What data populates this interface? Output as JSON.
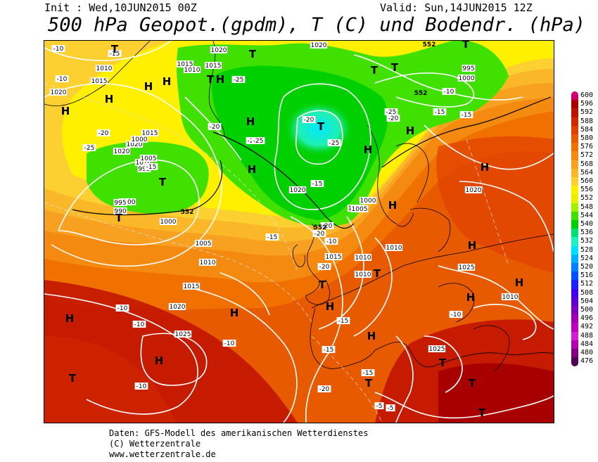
{
  "header": {
    "init": "Init : Wed,10JUN2015 00Z",
    "valid": "Valid: Sun,14JUN2015 12Z",
    "title": "500 hPa Geopot.(gpdm), T (C) und Bodendr. (hPa)"
  },
  "credits": {
    "line1": "Daten: GFS-Modell des amerikanischen Wetterdienstes",
    "line2": "(C) Wetterzentrale",
    "line3": "www.wetterzentrale.de"
  },
  "scale": {
    "labels": [
      "600",
      "596",
      "592",
      "588",
      "584",
      "580",
      "576",
      "572",
      "568",
      "564",
      "560",
      "556",
      "552",
      "548",
      "544",
      "540",
      "536",
      "532",
      "528",
      "524",
      "520",
      "516",
      "512",
      "508",
      "504",
      "500",
      "496",
      "492",
      "488",
      "484",
      "480",
      "476"
    ],
    "colors": [
      "#d2006e",
      "#a80000",
      "#c01000",
      "#d02800",
      "#e04000",
      "#e85a00",
      "#f07000",
      "#f48a10",
      "#f8a020",
      "#fab828",
      "#fcd030",
      "#fff000",
      "#e8f000",
      "#a0f000",
      "#40e000",
      "#00d000",
      "#00e070",
      "#20f0c0",
      "#00e0ff",
      "#00b0ff",
      "#0080ff",
      "#0050ff",
      "#2020ff",
      "#4000f0",
      "#6000d0",
      "#8000c0",
      "#a000b0",
      "#c000c0",
      "#d020d0",
      "#b000b0",
      "#800080",
      "#500050"
    ]
  },
  "map": {
    "pressure_labels": [
      "1010",
      "1015",
      "1020",
      "1020",
      "1015",
      "1020",
      "1015",
      "1015",
      "1020",
      "1000",
      "1010",
      "995",
      "1010",
      "1005",
      "995",
      "1000",
      "1000",
      "995",
      "990",
      "1005",
      "1000",
      "1005",
      "1010",
      "1015",
      "1020",
      "1025",
      "1020",
      "1020",
      "1000",
      "1005",
      "1025",
      "1015",
      "1010",
      "1010",
      "1010",
      "1010",
      "1020",
      "1025"
    ],
    "temp_labels": [
      "-10",
      "-15",
      "-10",
      "-20",
      "-25",
      "-15",
      "-25",
      "-20",
      "-25",
      "-20",
      "-25",
      "-15",
      "-20",
      "-25",
      "-15",
      "-20",
      "-20",
      "-15",
      "-10",
      "-10",
      "-15",
      "-15",
      "-20",
      "-15",
      "-15",
      "-10",
      "-10",
      "-5",
      "-5",
      "-10",
      "-20",
      "-10",
      "-10",
      "-25"
    ],
    "contour_labels": [
      "552",
      "552",
      "552",
      "552"
    ],
    "high_low_marks": [
      "H",
      "H",
      "H",
      "H",
      "H",
      "H",
      "H",
      "H",
      "H",
      "H",
      "H",
      "H",
      "H",
      "H",
      "H",
      "H",
      "H",
      "H",
      "H",
      "T",
      "T",
      "T",
      "T",
      "T",
      "T",
      "T",
      "T",
      "T",
      "T",
      "T",
      "T",
      "T",
      "T",
      "T",
      "T"
    ]
  }
}
